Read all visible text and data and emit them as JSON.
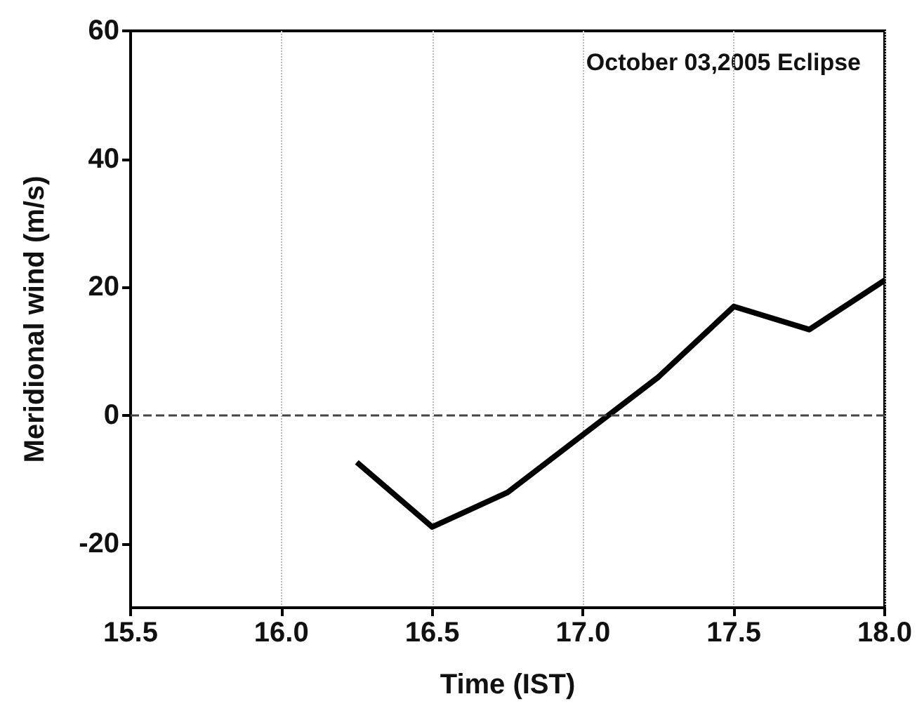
{
  "chart_data": {
    "type": "line",
    "xlabel": "Time (IST)",
    "ylabel": "Meridional wind (m/s)",
    "annotations": [
      "October 03,2005 Eclipse"
    ],
    "x": [
      16.25,
      16.5,
      16.75,
      17.0,
      17.25,
      17.5,
      17.75,
      18.0
    ],
    "series": [
      {
        "color": "#000000",
        "values": [
          -7.3,
          -17.4,
          -12,
          -3,
          6,
          17,
          13.4,
          21.1
        ]
      }
    ],
    "xlim": [
      15.5,
      18.0
    ],
    "xticks": [
      {
        "value": 15.5,
        "label": "15.5"
      },
      {
        "value": 16,
        "label": "16.0"
      },
      {
        "value": 16.5,
        "label": "16.5"
      },
      {
        "value": 17,
        "label": "17.0"
      },
      {
        "value": 17.5,
        "label": "17.5"
      },
      {
        "value": 18,
        "label": "18.0"
      }
    ],
    "ylim": [
      -30,
      60
    ],
    "yticks": [
      -20,
      0,
      20,
      40,
      60
    ],
    "grid": "x",
    "marker": "none",
    "line_style": "solid",
    "ref_lines": [
      {
        "axis": "y",
        "value": 0,
        "color": "#444444",
        "line_style": "dashed"
      }
    ]
  }
}
